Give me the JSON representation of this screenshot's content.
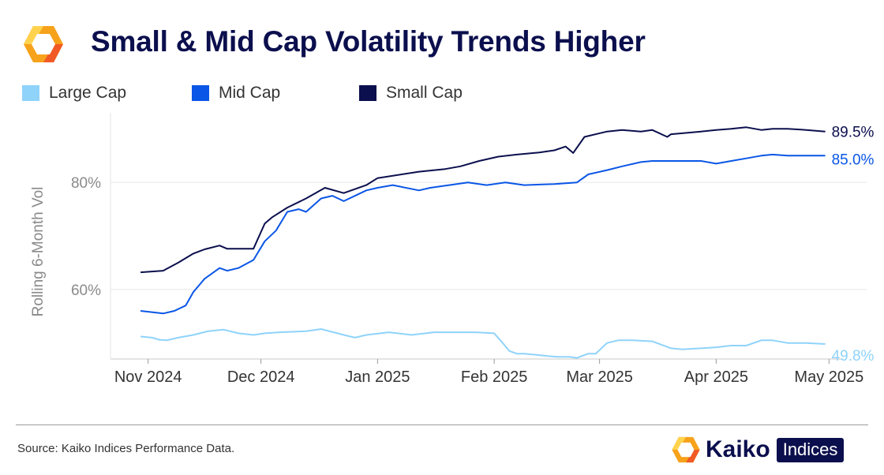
{
  "header": {
    "title": "Small & Mid Cap Volatility Trends Higher",
    "logo_icon": "kaiko-hexagon-icon"
  },
  "legend": {
    "items": [
      {
        "label": "Large Cap",
        "color": "#8fd3fb"
      },
      {
        "label": "Mid Cap",
        "color": "#0a56e6"
      },
      {
        "label": "Small Cap",
        "color": "#0b0f4d"
      }
    ]
  },
  "footer": {
    "source": "Source: Kaiko Indices Performance Data.",
    "brand": "Kaiko",
    "brand_tag": "Indices",
    "brand_icon": "kaiko-hexagon-icon"
  },
  "chart_data": {
    "type": "line",
    "title": "Small & Mid Cap Volatility Trends Higher",
    "xlabel": "",
    "ylabel": "Rolling 6-Month Vol",
    "ylim": [
      47,
      93
    ],
    "grid": true,
    "legend_position": "top-left",
    "yticks": [
      {
        "value": 60,
        "label": "60%"
      },
      {
        "value": 80,
        "label": "80%"
      }
    ],
    "xticks": [
      {
        "value": 0,
        "label": "Nov 2024"
      },
      {
        "value": 30,
        "label": "Dec 2024"
      },
      {
        "value": 61,
        "label": "Jan 2025"
      },
      {
        "value": 92,
        "label": "Feb 2025"
      },
      {
        "value": 120,
        "label": "Mar 2025"
      },
      {
        "value": 151,
        "label": "Apr 2025"
      },
      {
        "value": 181,
        "label": "May 2025"
      }
    ],
    "x_unit": "days since 2024-11-01",
    "xlim": [
      -10,
      191
    ],
    "series": [
      {
        "name": "Small Cap",
        "color": "#0b0f4d",
        "end_label": "89.5%",
        "x": [
          -2,
          4,
          8,
          12,
          15,
          19,
          21,
          28,
          31,
          33,
          37,
          42,
          47,
          52,
          58,
          61,
          72,
          79,
          83,
          88,
          93,
          98,
          104,
          108,
          111,
          113,
          116,
          122,
          126,
          131,
          134,
          138,
          139,
          147,
          151,
          155,
          159,
          163,
          166,
          170,
          175,
          180
        ],
        "y": [
          63.2,
          63.5,
          65.0,
          66.7,
          67.5,
          68.2,
          67.6,
          67.6,
          72.3,
          73.5,
          75.3,
          77.0,
          79.0,
          78.0,
          79.5,
          80.8,
          82.0,
          82.5,
          83.0,
          84.0,
          84.8,
          85.2,
          85.6,
          86.0,
          86.7,
          85.5,
          88.5,
          89.5,
          89.8,
          89.5,
          89.8,
          88.5,
          89.0,
          89.5,
          89.8,
          90.0,
          90.3,
          89.8,
          90.0,
          90.0,
          89.8,
          89.5
        ]
      },
      {
        "name": "Mid Cap",
        "color": "#0a56e6",
        "end_label": "85.0%",
        "x": [
          -2,
          4,
          7,
          10,
          12,
          15,
          19,
          21,
          24,
          28,
          31,
          34,
          37,
          40,
          42,
          46,
          49,
          52,
          58,
          61,
          65,
          72,
          75,
          80,
          85,
          90,
          95,
          100,
          104,
          108,
          114,
          117,
          122,
          126,
          131,
          134,
          138,
          142,
          147,
          151,
          155,
          159,
          163,
          166,
          170,
          175,
          180
        ],
        "y": [
          56.0,
          55.5,
          56.0,
          57.0,
          59.5,
          62.0,
          64.0,
          63.5,
          64.0,
          65.5,
          69.0,
          71.0,
          74.5,
          75.0,
          74.5,
          77.0,
          77.5,
          76.5,
          78.5,
          79.0,
          79.5,
          78.5,
          79.0,
          79.5,
          80.0,
          79.5,
          80.0,
          79.5,
          79.6,
          79.7,
          80.0,
          81.5,
          82.3,
          83.0,
          83.8,
          84.0,
          84.0,
          84.0,
          84.0,
          83.5,
          84.0,
          84.5,
          85.0,
          85.2,
          85.0,
          85.0,
          85.0
        ]
      },
      {
        "name": "Large Cap",
        "color": "#8fd3fb",
        "end_label": "49.8%",
        "x": [
          -2,
          1,
          3,
          5,
          8,
          12,
          16,
          20,
          24,
          28,
          31,
          35,
          42,
          46,
          52,
          55,
          58,
          64,
          70,
          76,
          82,
          87,
          92,
          94,
          96,
          98,
          100,
          103,
          107,
          109,
          112,
          114,
          117,
          119,
          122,
          125,
          129,
          134,
          139,
          142,
          147,
          151,
          155,
          159,
          163,
          166,
          170,
          175,
          180
        ],
        "y": [
          51.2,
          51.0,
          50.6,
          50.5,
          51.0,
          51.5,
          52.2,
          52.5,
          51.8,
          51.5,
          51.8,
          52.0,
          52.2,
          52.6,
          51.5,
          51.0,
          51.5,
          52.0,
          51.5,
          52.0,
          52.0,
          52.0,
          51.8,
          50.2,
          48.5,
          48.0,
          48.0,
          47.8,
          47.5,
          47.4,
          47.4,
          47.2,
          48.0,
          48.0,
          50.0,
          50.5,
          50.5,
          50.3,
          49.0,
          48.8,
          49.0,
          49.2,
          49.5,
          49.5,
          50.5,
          50.5,
          50.0,
          50.0,
          49.8
        ]
      }
    ]
  }
}
